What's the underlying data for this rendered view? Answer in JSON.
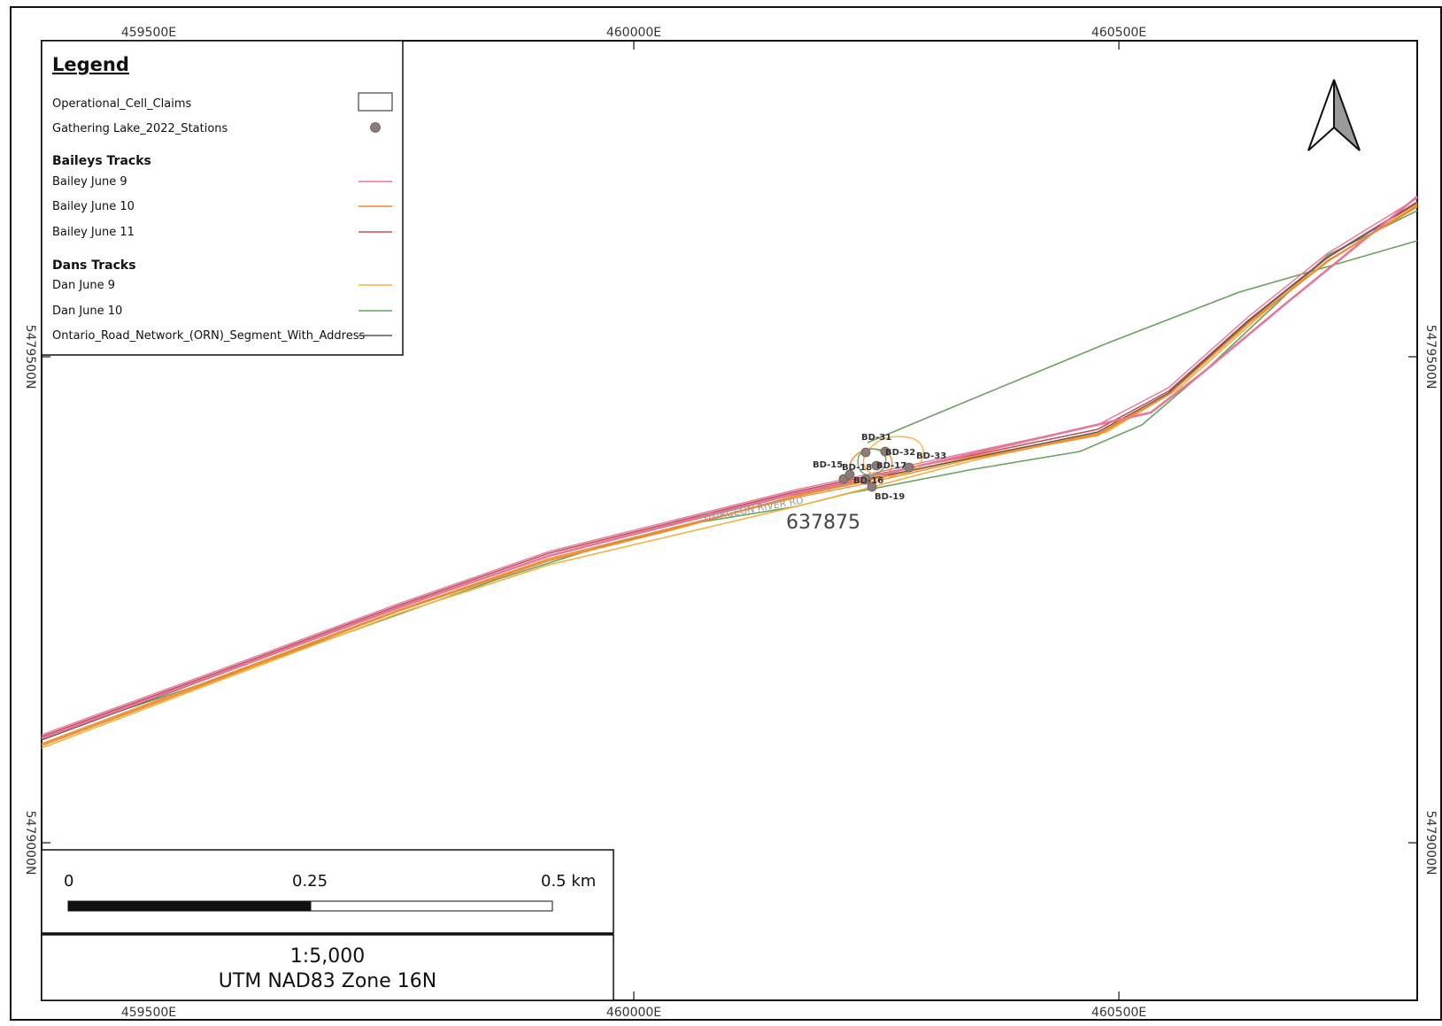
{
  "map": {
    "grid_labels": {
      "easting": [
        "459500E",
        "460000E",
        "460500E"
      ],
      "northing": [
        "5479500N",
        "5479000N"
      ]
    },
    "legend": {
      "title": "Legend",
      "items": [
        {
          "label": "Operational_Cell_Claims",
          "symbol": "rect",
          "color": "#444444"
        },
        {
          "label": "Gathering Lake_2022_Stations",
          "symbol": "dot",
          "color": "#8b7d78"
        }
      ],
      "groups": [
        {
          "title": "Baileys Tracks",
          "items": [
            {
              "label": "Bailey June 9",
              "color": "#e8759a"
            },
            {
              "label": "Bailey June 10",
              "color": "#f08c2e"
            },
            {
              "label": "Bailey June 11",
              "color": "#c0505c"
            }
          ]
        },
        {
          "title": "Dans Tracks",
          "items": [
            {
              "label": "Dan June 9",
              "color": "#f5b13d"
            },
            {
              "label": "Dan June 10",
              "color": "#6aa163"
            }
          ]
        }
      ],
      "road_item": {
        "label": "Ontario_Road_Network_(ORN)_Segment_With_Address",
        "color": "#555555"
      }
    },
    "stations": [
      "BD-31",
      "BD-32",
      "BD-33",
      "BD-15",
      "BD-18",
      "BD-17",
      "BD-16",
      "BD-19"
    ],
    "road_label": "STURGEON RIVER RD",
    "claim_label": "637875",
    "scale_bar": {
      "ticks": [
        "0",
        "0.25",
        "0.5 km"
      ]
    },
    "scale": "1:5,000",
    "projection": "UTM NAD83 Zone 16N",
    "north_arrow_icon": "north-arrow-icon"
  }
}
